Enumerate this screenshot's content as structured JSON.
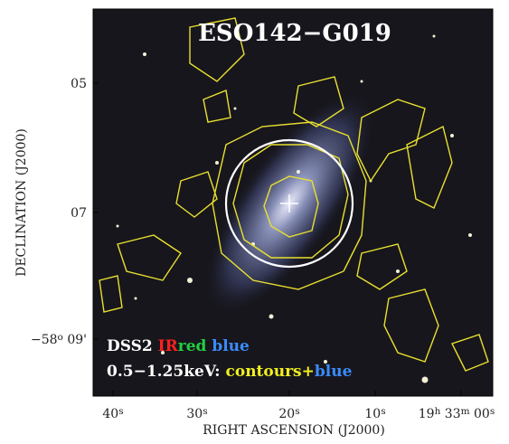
{
  "title": "ESO142−G019",
  "x_axis_label": "RIGHT ASCENSION (J2000)",
  "y_axis_label": "DECLINATION (J2000)",
  "x_ticks": [
    [
      "40",
      "s"
    ],
    [
      "30",
      "s"
    ],
    [
      "20",
      "s"
    ],
    [
      "10",
      "s"
    ],
    [
      "19",
      "h",
      " 33",
      "m",
      " 00",
      "s"
    ]
  ],
  "y_ticks": [
    [
      "05"
    ],
    [
      "07"
    ],
    [
      "−58",
      "o",
      " 09'"
    ]
  ],
  "legend": [
    [
      {
        "text": "DSS2 ",
        "color": "#ffffff"
      },
      {
        "text": "IR",
        "color": "#ff2020"
      },
      {
        "text": "red",
        "color": "#20d040"
      },
      {
        "text": " blue",
        "color": "#3a8cff"
      }
    ],
    [
      {
        "text": "0.5−1.25keV: ",
        "color": "#ffffff"
      },
      {
        "text": "contours+",
        "color": "#f0f020"
      },
      {
        "text": "blue",
        "color": "#3a8cff"
      }
    ]
  ]
}
